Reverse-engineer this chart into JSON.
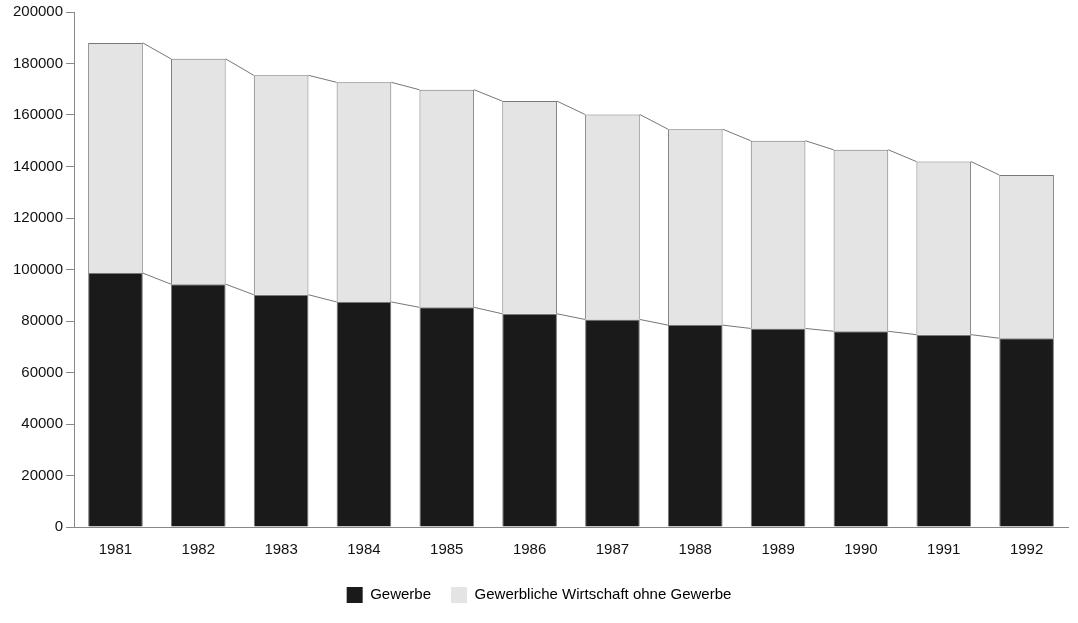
{
  "chart_data": {
    "type": "bar",
    "stacked": true,
    "categories": [
      "1981",
      "1982",
      "1983",
      "1984",
      "1985",
      "1986",
      "1987",
      "1988",
      "1989",
      "1990",
      "1991",
      "1992"
    ],
    "series": [
      {
        "name": "Gewerbe",
        "color": "#1a1a1a",
        "values": [
          98600,
          94300,
          90200,
          87400,
          85300,
          82800,
          80600,
          78400,
          77100,
          76000,
          74700,
          73300
        ]
      },
      {
        "name": "Gewerbliche Wirtschaft ohne Gewerbe",
        "color": "#e4e4e4",
        "values": [
          89400,
          87500,
          85200,
          85300,
          84500,
          82600,
          79600,
          76100,
          72900,
          70500,
          67200,
          63400
        ]
      }
    ],
    "ylim": [
      0,
      200000
    ],
    "yticks": [
      0,
      20000,
      40000,
      60000,
      80000,
      100000,
      120000,
      140000,
      160000,
      180000,
      200000
    ],
    "grid": false,
    "legend": "bottom"
  }
}
